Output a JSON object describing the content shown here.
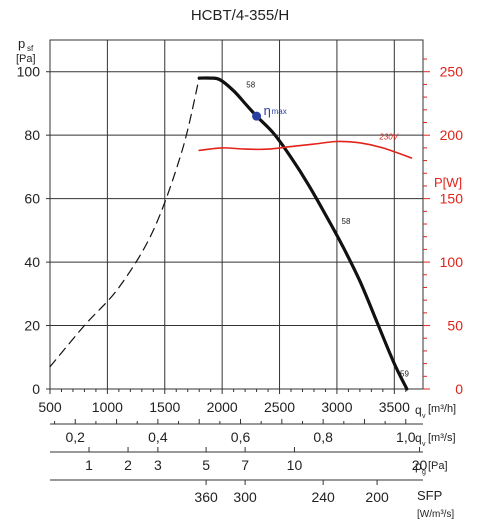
{
  "title": "HCBT/4-355/H",
  "y_axis": {
    "label_main": "p",
    "label_sub": "sf",
    "unit": "[Pa]"
  },
  "power_axis": {
    "label": "P[W]"
  },
  "qv_axis": {
    "label_main": "q",
    "label_sub": "v",
    "unit": "[m³/h]"
  },
  "qvs_axis": {
    "label_main": "q",
    "label_sub": "v",
    "unit": "[m³/s]"
  },
  "pg_axis": {
    "label_main": "p",
    "label_sub": "g",
    "unit": "[Pa]"
  },
  "sfp_axis": {
    "label": "SFP",
    "unit": "[W/m³/s]"
  },
  "annotations": {
    "eta": "η",
    "eta_sub": "max",
    "motor_voltage": "230V",
    "curve_labels": [
      "58",
      "58",
      "59"
    ]
  },
  "colors": {
    "curve": "#111111",
    "power": "#e2231a",
    "eta_point": "#2b3fa0",
    "grid": "#333333"
  },
  "chart_data": {
    "type": "line",
    "title": "HCBT/4-355/H",
    "xlim": [
      500,
      3750
    ],
    "ylim": [
      0,
      110
    ],
    "power_lim": [
      0,
      275
    ],
    "grid": true,
    "x_ticks": [
      "500",
      "1000",
      "1500",
      "2000",
      "2500",
      "3000",
      "3500"
    ],
    "x_tick_values": [
      500,
      1000,
      1500,
      2000,
      2500,
      3000,
      3500
    ],
    "y_ticks": [
      "0",
      "20",
      "40",
      "60",
      "80",
      "100"
    ],
    "y_tick_values": [
      0,
      20,
      40,
      60,
      80,
      100
    ],
    "power_ticks": [
      "0",
      "50",
      "100",
      "150",
      "200",
      "250"
    ],
    "power_tick_values": [
      0,
      50,
      100,
      150,
      200,
      250
    ],
    "qv_ticks": [
      "0,2",
      "0,4",
      "0,6",
      "0,8",
      "1,0"
    ],
    "qv_tick_values": [
      0.2,
      0.4,
      0.6,
      0.8,
      1.0
    ],
    "pg_ticks": [
      "1",
      "2",
      "3",
      "5",
      "7",
      "10",
      "20"
    ],
    "pg_tick_airflow": [
      840,
      1180,
      1440,
      1860,
      2200,
      2630,
      3720
    ],
    "sfp_ticks": [
      "360",
      "300",
      "240",
      "200"
    ],
    "sfp_tick_airflow": [
      1860,
      2200,
      2880,
      3350
    ],
    "series": [
      {
        "style": "dashed",
        "x": [
          500,
          800,
          1100,
          1400,
          1650,
          1800
        ],
        "y": [
          7,
          20,
          32,
          50,
          75,
          98
        ]
      },
      {
        "style": "solid",
        "x": [
          1800,
          1900,
          1980,
          2100,
          2200,
          2300,
          2450,
          2600,
          2750,
          2900,
          3050,
          3200,
          3350,
          3500,
          3610
        ],
        "y": [
          98,
          98,
          97.5,
          94,
          90,
          86,
          80.5,
          73,
          64.5,
          55,
          45,
          34,
          21,
          8,
          0
        ]
      },
      {
        "style": "solid",
        "axis": "power",
        "x": [
          1800,
          2000,
          2200,
          2400,
          2600,
          2800,
          3000,
          3200,
          3400,
          3650
        ],
        "y": [
          188,
          190,
          189,
          189,
          191,
          193,
          195,
          194,
          190,
          182
        ]
      }
    ],
    "eta_max_point": {
      "x": 2300,
      "y": 86
    },
    "curve_label_points": [
      {
        "text": "58",
        "x": 2210,
        "y": 95
      },
      {
        "text": "58",
        "x": 3040,
        "y": 52
      },
      {
        "text": "59",
        "x": 3550,
        "y": 4
      }
    ]
  }
}
